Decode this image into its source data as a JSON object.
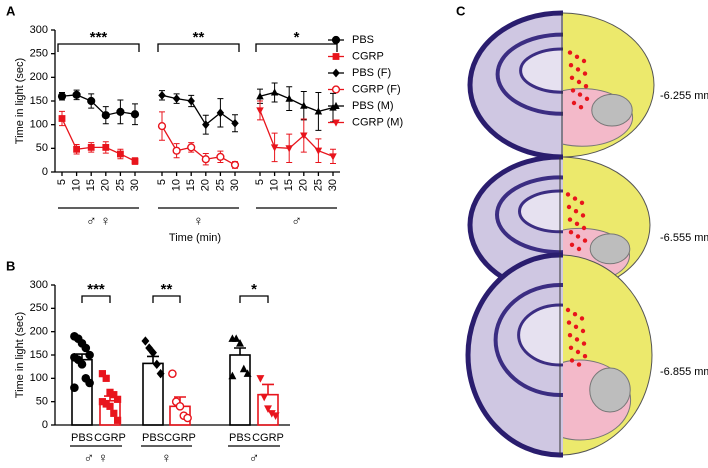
{
  "chart_data": [
    {
      "type": "line",
      "label": "A",
      "ylabel": "Time in light (sec)",
      "xlabel": "Time (min)",
      "categories": [
        5,
        10,
        15,
        20,
        25,
        30,
        5,
        10,
        15,
        20,
        25,
        30,
        5,
        10,
        15,
        20,
        25,
        30
      ],
      "groups": [
        {
          "label": "♂ ♀",
          "significance": "***"
        },
        {
          "label": "♀",
          "significance": "**"
        },
        {
          "label": "♂",
          "significance": "*"
        }
      ],
      "ylim": [
        0,
        300
      ],
      "yticks": [
        0,
        50,
        100,
        150,
        200,
        250,
        300
      ],
      "series": [
        {
          "name": "PBS",
          "color": "#000000",
          "marker": "circle",
          "values": [
            160,
            163,
            150,
            120,
            127,
            122,
            null,
            null,
            null,
            null,
            null,
            null,
            null,
            null,
            null,
            null,
            null,
            null
          ],
          "errors": [
            8,
            10,
            15,
            18,
            25,
            22,
            null,
            null,
            null,
            null,
            null,
            null,
            null,
            null,
            null,
            null,
            null,
            null
          ]
        },
        {
          "name": "CGRP",
          "color": "#e8141c",
          "marker": "square",
          "values": [
            113,
            48,
            52,
            52,
            38,
            23,
            null,
            null,
            null,
            null,
            null,
            null,
            null,
            null,
            null,
            null,
            null,
            null
          ],
          "errors": [
            15,
            10,
            10,
            12,
            10,
            7,
            null,
            null,
            null,
            null,
            null,
            null,
            null,
            null,
            null,
            null,
            null,
            null
          ]
        },
        {
          "name": "PBS (F)",
          "color": "#000000",
          "marker": "diamond",
          "values": [
            null,
            null,
            null,
            null,
            null,
            null,
            162,
            155,
            150,
            100,
            125,
            103,
            null,
            null,
            null,
            null,
            null,
            null
          ],
          "errors": [
            null,
            null,
            null,
            null,
            null,
            null,
            10,
            10,
            12,
            20,
            30,
            18,
            null,
            null,
            null,
            null,
            null,
            null
          ]
        },
        {
          "name": "CGRP (F)",
          "color": "#e8141c",
          "marker": "open-circle",
          "values": [
            null,
            null,
            null,
            null,
            null,
            null,
            97,
            45,
            52,
            27,
            32,
            15,
            null,
            null,
            null,
            null,
            null,
            null
          ],
          "errors": [
            null,
            null,
            null,
            null,
            null,
            null,
            30,
            15,
            10,
            12,
            12,
            7,
            null,
            null,
            null,
            null,
            null,
            null
          ]
        },
        {
          "name": "PBS (M)",
          "color": "#000000",
          "marker": "triangle",
          "values": [
            null,
            null,
            null,
            null,
            null,
            null,
            null,
            null,
            null,
            null,
            null,
            null,
            160,
            168,
            155,
            140,
            128,
            136
          ],
          "errors": [
            null,
            null,
            null,
            null,
            null,
            null,
            null,
            null,
            null,
            null,
            null,
            null,
            15,
            20,
            25,
            30,
            40,
            30
          ]
        },
        {
          "name": "CGRP (M)",
          "color": "#e8141c",
          "marker": "triangle-down",
          "values": [
            null,
            null,
            null,
            null,
            null,
            null,
            null,
            null,
            null,
            null,
            null,
            null,
            130,
            52,
            50,
            77,
            45,
            33
          ],
          "errors": [
            null,
            null,
            null,
            null,
            null,
            null,
            null,
            null,
            null,
            null,
            null,
            null,
            20,
            30,
            30,
            35,
            25,
            15
          ]
        }
      ]
    },
    {
      "type": "bar",
      "label": "B",
      "ylabel": "Time in light (sec)",
      "categories": [
        "PBS",
        "CGRP",
        "PBS",
        "CGRP",
        "PBS",
        "CGRP"
      ],
      "groups": [
        {
          "label": "♂ ♀",
          "significance": "***"
        },
        {
          "label": "♀",
          "significance": "**"
        },
        {
          "label": "♂",
          "significance": "*"
        }
      ],
      "ylim": [
        0,
        300
      ],
      "yticks": [
        0,
        50,
        100,
        150,
        200,
        250,
        300
      ],
      "values": [
        140,
        52,
        132,
        40,
        150,
        65
      ],
      "errors": [
        12,
        10,
        15,
        20,
        15,
        22
      ],
      "colors": [
        "#000000",
        "#e8141c",
        "#000000",
        "#e8141c",
        "#000000",
        "#e8141c"
      ],
      "markers": [
        "circle",
        "square",
        "diamond",
        "open-circle",
        "triangle",
        "triangle-down"
      ],
      "points": [
        [
          190,
          185,
          175,
          165,
          150,
          145,
          140,
          130,
          100,
          90,
          80
        ],
        [
          110,
          100,
          70,
          65,
          55,
          50,
          45,
          40,
          25,
          10
        ],
        [
          180,
          165,
          155,
          130,
          110
        ],
        [
          110,
          50,
          40,
          20,
          15
        ],
        [
          185,
          185,
          175,
          120,
          110,
          105
        ],
        [
          100,
          60,
          35,
          25,
          20
        ]
      ]
    }
  ],
  "panel_c": {
    "label": "C",
    "levels": [
      "-6.255 mm",
      "-6.555 mm",
      "-6.855 mm"
    ]
  }
}
